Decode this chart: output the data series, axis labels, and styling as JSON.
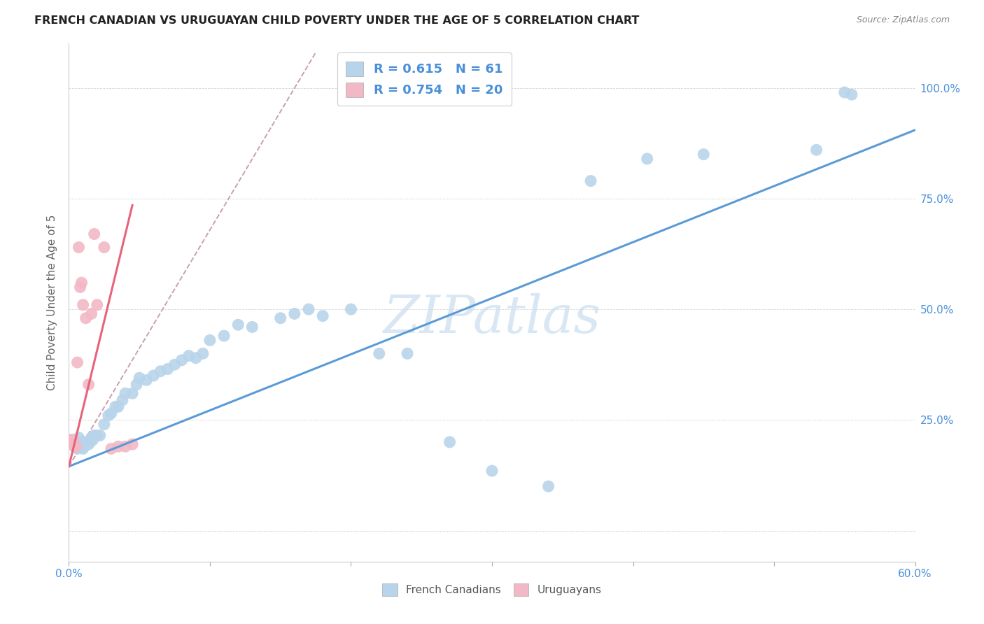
{
  "title": "FRENCH CANADIAN VS URUGUAYAN CHILD POVERTY UNDER THE AGE OF 5 CORRELATION CHART",
  "source": "Source: ZipAtlas.com",
  "ylabel": "Child Poverty Under the Age of 5",
  "legend_label1": "French Canadians",
  "legend_label2": "Uruguayans",
  "R1": 0.615,
  "N1": 61,
  "R2": 0.754,
  "N2": 20,
  "color_blue": "#b8d4ea",
  "color_pink": "#f2b8c6",
  "color_blue_line": "#5b9bd5",
  "color_pink_line": "#e8637a",
  "color_blue_text": "#4a90d9",
  "watermark": "ZIPatlas",
  "xlim": [
    0,
    0.6
  ],
  "ylim": [
    -0.07,
    1.1
  ],
  "blue_scatter_x": [
    0.002,
    0.003,
    0.004,
    0.005,
    0.006,
    0.006,
    0.007,
    0.007,
    0.008,
    0.009,
    0.01,
    0.01,
    0.011,
    0.012,
    0.013,
    0.014,
    0.015,
    0.016,
    0.017,
    0.018,
    0.02,
    0.022,
    0.025,
    0.028,
    0.03,
    0.033,
    0.035,
    0.038,
    0.04,
    0.045,
    0.048,
    0.05,
    0.055,
    0.06,
    0.065,
    0.07,
    0.075,
    0.08,
    0.085,
    0.09,
    0.095,
    0.1,
    0.11,
    0.12,
    0.13,
    0.15,
    0.16,
    0.17,
    0.18,
    0.2,
    0.22,
    0.24,
    0.27,
    0.3,
    0.34,
    0.37,
    0.41,
    0.45,
    0.53,
    0.55,
    0.555
  ],
  "blue_scatter_y": [
    0.205,
    0.2,
    0.195,
    0.19,
    0.185,
    0.2,
    0.21,
    0.195,
    0.195,
    0.19,
    0.2,
    0.185,
    0.19,
    0.195,
    0.2,
    0.195,
    0.2,
    0.21,
    0.205,
    0.215,
    0.215,
    0.215,
    0.24,
    0.26,
    0.265,
    0.28,
    0.28,
    0.295,
    0.31,
    0.31,
    0.33,
    0.345,
    0.34,
    0.35,
    0.36,
    0.365,
    0.375,
    0.385,
    0.395,
    0.39,
    0.4,
    0.43,
    0.44,
    0.465,
    0.46,
    0.48,
    0.49,
    0.5,
    0.485,
    0.5,
    0.4,
    0.4,
    0.2,
    0.135,
    0.1,
    0.79,
    0.84,
    0.85,
    0.86,
    0.99,
    0.985
  ],
  "pink_scatter_x": [
    0.001,
    0.002,
    0.003,
    0.004,
    0.005,
    0.006,
    0.007,
    0.008,
    0.009,
    0.01,
    0.012,
    0.014,
    0.016,
    0.018,
    0.02,
    0.025,
    0.03,
    0.035,
    0.04,
    0.045
  ],
  "pink_scatter_y": [
    0.205,
    0.2,
    0.205,
    0.19,
    0.19,
    0.38,
    0.64,
    0.55,
    0.56,
    0.51,
    0.48,
    0.33,
    0.49,
    0.67,
    0.51,
    0.64,
    0.185,
    0.19,
    0.19,
    0.195
  ],
  "blue_regr": [
    0.0,
    0.6,
    0.145,
    0.905
  ],
  "pink_regr_solid": [
    0.0,
    0.045,
    0.145,
    0.735
  ],
  "pink_regr_dash": [
    0.0,
    0.175,
    0.145,
    1.08
  ]
}
